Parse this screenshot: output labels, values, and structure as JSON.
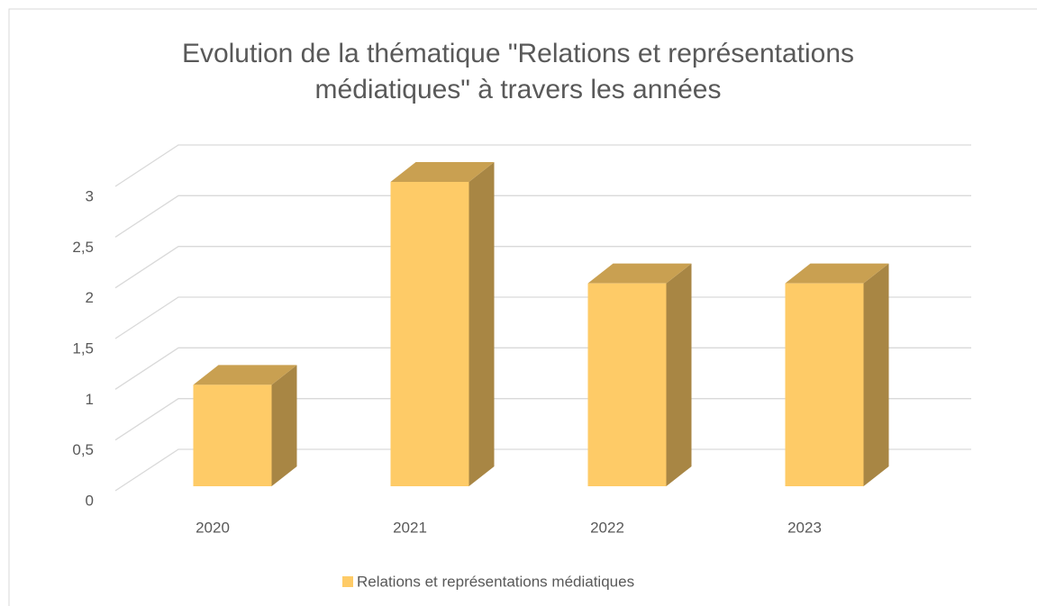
{
  "chart_data": {
    "type": "bar3d",
    "title": "Evolution de la thématique \"Relations et représentations médiatiques\" à travers les années",
    "categories": [
      "2020",
      "2021",
      "2022",
      "2023"
    ],
    "series": [
      {
        "name": "Relations et représentations médiatiques",
        "color": "#fecb67",
        "values": [
          1,
          3,
          2,
          2
        ]
      }
    ],
    "ylim": [
      0,
      3
    ],
    "yticks": [
      0,
      {
        "value": 0.5,
        "label": "0,5"
      },
      1,
      {
        "value": 1.5,
        "label": "1,5"
      },
      2,
      {
        "value": 2.5,
        "label": "2,5"
      },
      3
    ],
    "grid": true,
    "legend": "bottom"
  }
}
